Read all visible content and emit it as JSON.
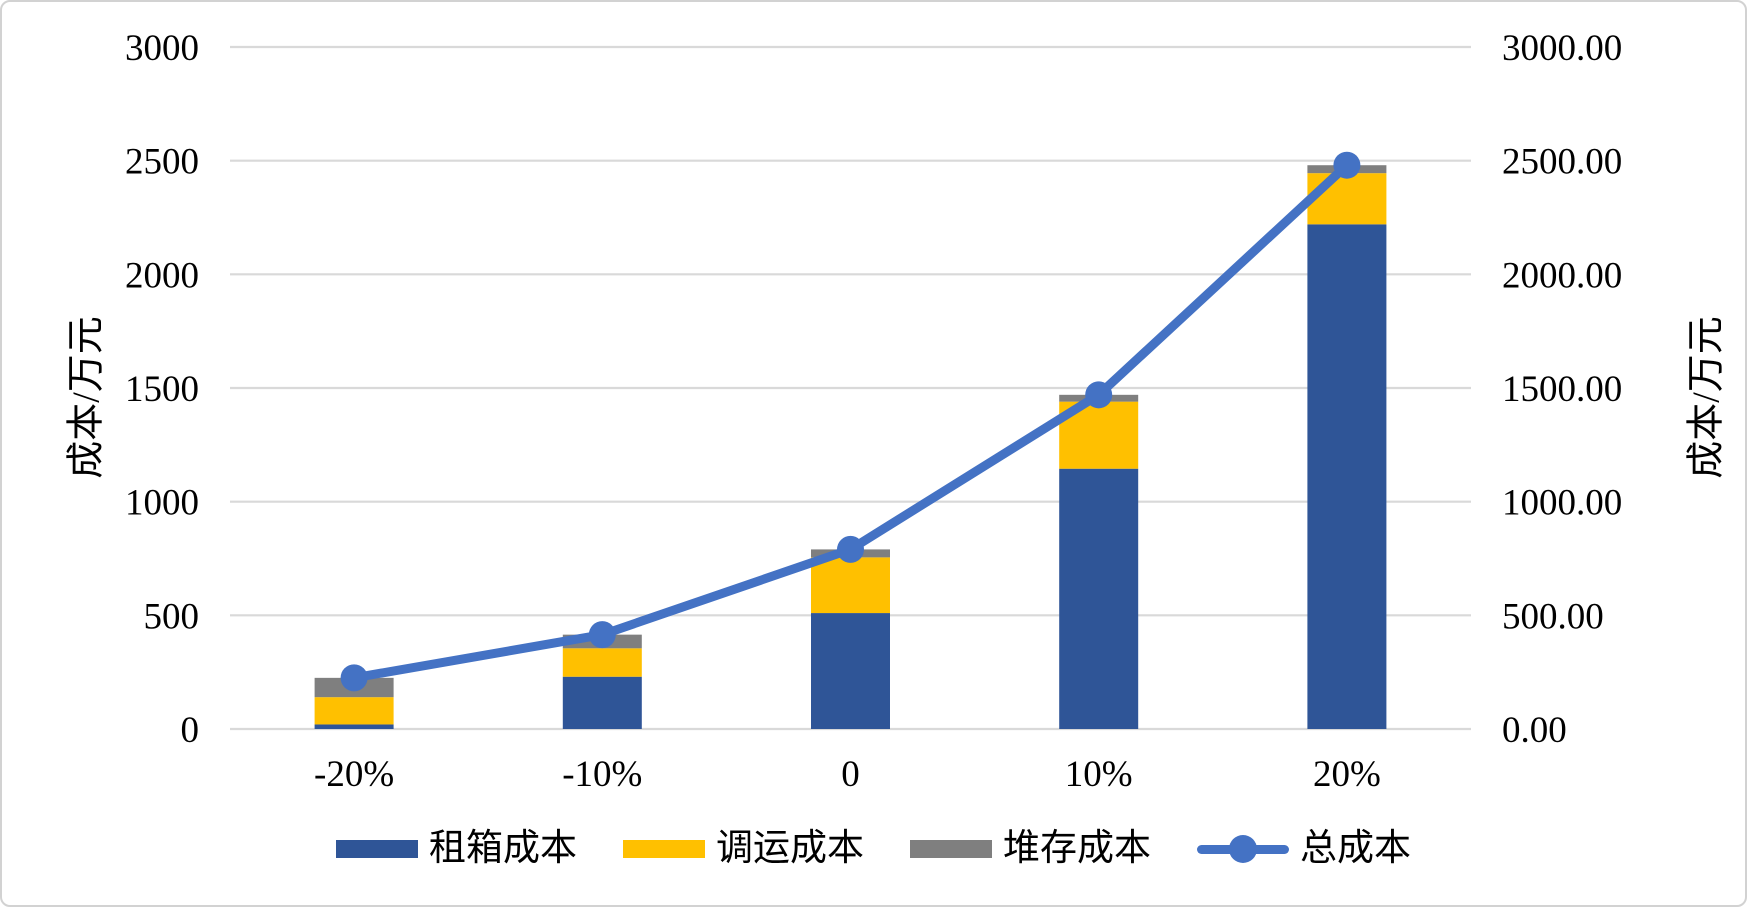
{
  "chart_data": {
    "type": "bar",
    "subtype": "stacked-column-with-line-overlay",
    "title": "",
    "categories": [
      "-20%",
      "-10%",
      "0",
      "10%",
      "20%"
    ],
    "series": [
      {
        "name": "租箱成本",
        "kind": "bar-stacked",
        "color": "#2F5597",
        "values": [
          20,
          230,
          510,
          1145,
          2220
        ]
      },
      {
        "name": "调运成本",
        "kind": "bar-stacked",
        "color": "#FFC000",
        "values": [
          120,
          125,
          245,
          295,
          225
        ]
      },
      {
        "name": "堆存成本",
        "kind": "bar-stacked",
        "color": "#7F7F7F",
        "values": [
          85,
          60,
          35,
          30,
          35
        ]
      },
      {
        "name": "总成本",
        "kind": "line",
        "color": "#4472C4",
        "values": [
          225,
          415,
          790,
          1470,
          2480
        ]
      }
    ],
    "left_axis": {
      "title": "成本/万元",
      "min": 0,
      "max": 3000,
      "tick_step": 500,
      "tick_labels": [
        "0",
        "500",
        "1000",
        "1500",
        "2000",
        "2500",
        "3000"
      ]
    },
    "right_axis": {
      "title": "成本/万元",
      "min": 0,
      "max": 3000,
      "tick_step": 500,
      "tick_labels": [
        "0.00",
        "500.00",
        "1000.00",
        "1500.00",
        "2000.00",
        "2500.00",
        "3000.00"
      ]
    },
    "grid": {
      "horizontal": true,
      "color": "#D9D9D9"
    },
    "legend": {
      "position": "bottom"
    },
    "text_color": "#000000"
  }
}
